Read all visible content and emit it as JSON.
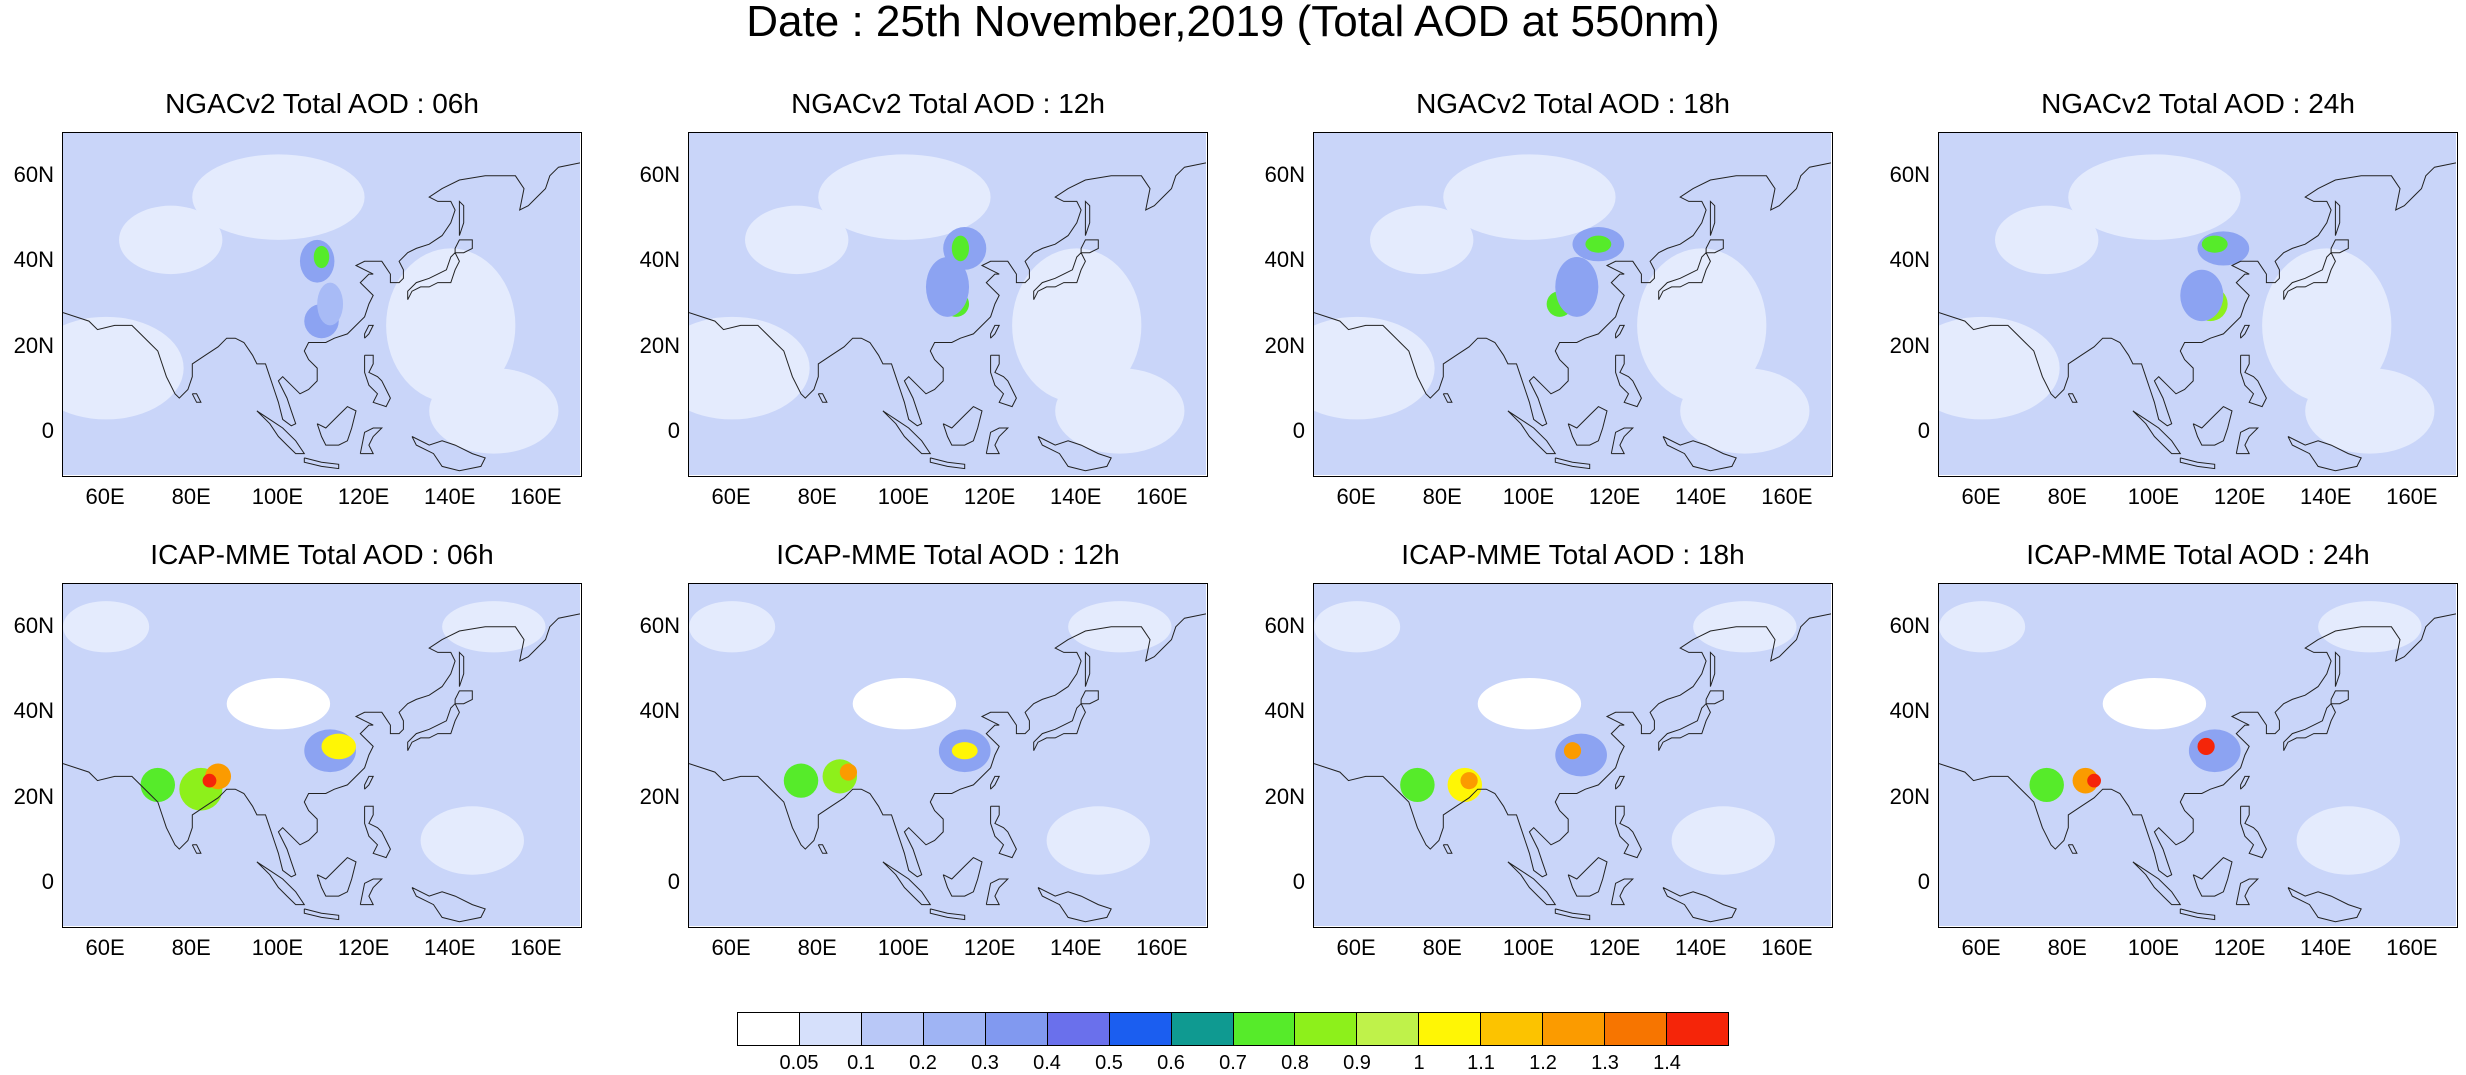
{
  "title": "Date : 25th November,2019 (Total AOD at 550nm)",
  "panels": [
    {
      "title": "NGACv2 Total AOD : 06h",
      "model": "NGACv2"
    },
    {
      "title": "NGACv2 Total AOD : 12h",
      "model": "NGACv2"
    },
    {
      "title": "NGACv2 Total AOD : 18h",
      "model": "NGACv2"
    },
    {
      "title": "NGACv2 Total AOD : 24h",
      "model": "NGACv2"
    },
    {
      "title": "ICAP-MME Total AOD : 06h",
      "model": "ICAP-MME"
    },
    {
      "title": "ICAP-MME Total AOD : 12h",
      "model": "ICAP-MME"
    },
    {
      "title": "ICAP-MME Total AOD : 18h",
      "model": "ICAP-MME"
    },
    {
      "title": "ICAP-MME Total AOD : 24h",
      "model": "ICAP-MME"
    }
  ],
  "map_extent": {
    "lon": [
      50,
      170
    ],
    "lat": [
      -10,
      70
    ]
  },
  "lat_ticks": [
    "60N",
    "40N",
    "20N",
    "0"
  ],
  "lon_ticks": [
    "60E",
    "80E",
    "100E",
    "120E",
    "140E",
    "160E"
  ],
  "colorbar": {
    "labels": [
      "0.05",
      "0.1",
      "0.2",
      "0.3",
      "0.4",
      "0.5",
      "0.6",
      "0.7",
      "0.8",
      "0.9",
      "1",
      "1.1",
      "1.2",
      "1.3",
      "1.4"
    ],
    "colors": [
      "#ffffff",
      "#d6e0fb",
      "#b9c8f7",
      "#9fb4f4",
      "#8199f0",
      "#6a70ec",
      "#1b5ef0",
      "#0f9a91",
      "#56eb2a",
      "#8df01b",
      "#bff24a",
      "#fff605",
      "#fcc300",
      "#fb9b00",
      "#f77500",
      "#f52509"
    ]
  }
}
